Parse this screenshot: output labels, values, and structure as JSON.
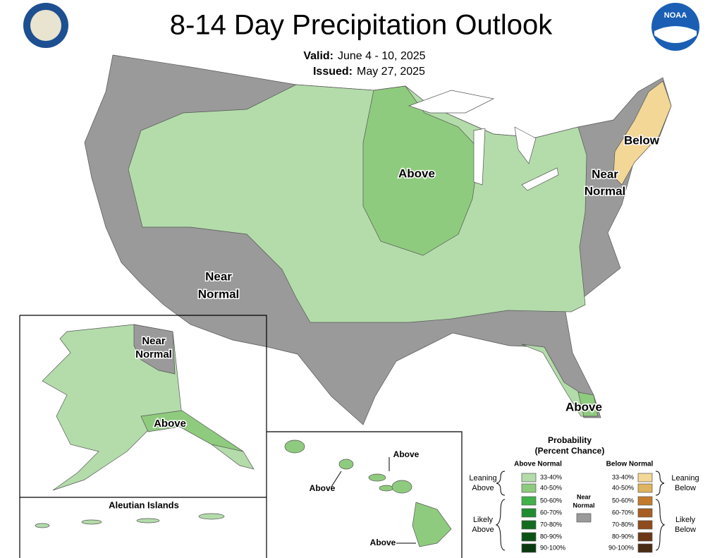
{
  "header": {
    "title": "8-14 Day Precipitation Outlook",
    "valid_label": "Valid:",
    "valid_date": "June 4 - 10, 2025",
    "issued_label": "Issued:",
    "issued_date": "May 27, 2025",
    "logo": "NOAA"
  },
  "map_labels": {
    "conus": [
      {
        "lines": [
          "Above"
        ]
      },
      {
        "lines": [
          "Near",
          "Normal"
        ]
      },
      {
        "lines": [
          "Below"
        ]
      },
      {
        "lines": [
          "Near",
          "Normal"
        ]
      },
      {
        "lines": [
          "Above"
        ]
      }
    ],
    "alaska": [
      {
        "lines": [
          "Near",
          "Normal"
        ]
      },
      {
        "lines": [
          "Above"
        ]
      }
    ],
    "aleutian_title": "Aleutian Islands",
    "hawaii": [
      "Above",
      "Above",
      "Above"
    ]
  },
  "legend": {
    "title": "Probability",
    "subtitle": "(Percent Chance)",
    "above_heading": "Above Normal",
    "below_heading": "Below Normal",
    "leaning_above": [
      "Leaning",
      "Above"
    ],
    "likely_above": [
      "Likely",
      "Above"
    ],
    "near_normal": {
      "lines": [
        "Near",
        "Normal"
      ],
      "color": "#9a9a9a"
    },
    "leaning_below": [
      "Leaning",
      "Below"
    ],
    "likely_below": [
      "Likely",
      "Below"
    ],
    "above": [
      {
        "label": "33-40%",
        "color": "#b3dcaa"
      },
      {
        "label": "40-50%",
        "color": "#8fcb7e"
      },
      {
        "label": "50-60%",
        "color": "#40b24a"
      },
      {
        "label": "60-70%",
        "color": "#1f8d2f"
      },
      {
        "label": "70-80%",
        "color": "#126c1f"
      },
      {
        "label": "80-90%",
        "color": "#0b5215"
      },
      {
        "label": "90-100%",
        "color": "#073a0e"
      }
    ],
    "below": [
      {
        "label": "33-40%",
        "color": "#f3d797"
      },
      {
        "label": "40-50%",
        "color": "#dfb45e"
      },
      {
        "label": "50-60%",
        "color": "#c27b2c"
      },
      {
        "label": "60-70%",
        "color": "#a85e23"
      },
      {
        "label": "70-80%",
        "color": "#8e4b1d"
      },
      {
        "label": "80-90%",
        "color": "#6c3816"
      },
      {
        "label": "90-100%",
        "color": "#4a2b13"
      }
    ]
  }
}
